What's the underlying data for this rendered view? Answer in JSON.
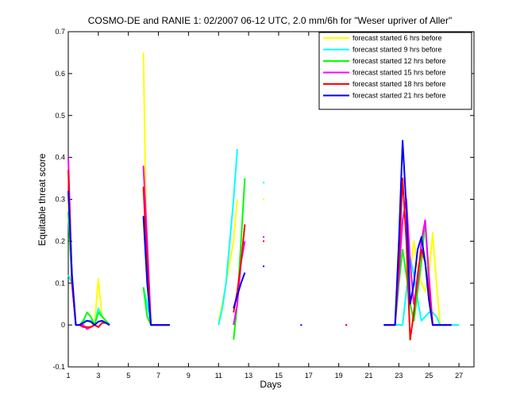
{
  "chart_data": {
    "type": "line",
    "title": "COSMO-DE and RANIE 1: 02/2007 06-12 UTC, 2.0 mm/6h for \"Weser upriver of Aller\"",
    "xlabel": "Days",
    "ylabel": "Equitable threat score",
    "xlim": [
      1,
      28
    ],
    "ylim": [
      -0.1,
      0.7
    ],
    "x_ticks": [
      1,
      3,
      5,
      7,
      9,
      11,
      13,
      15,
      17,
      19,
      21,
      23,
      25,
      27
    ],
    "x_tick_labels": [
      "1",
      "3",
      "5",
      "7",
      "9",
      "11",
      "13",
      "15",
      "17",
      "19",
      "21",
      "23",
      "25",
      "27"
    ],
    "y_ticks": [
      -0.1,
      0,
      0.1,
      0.2,
      0.3,
      0.4,
      0.5,
      0.6,
      0.7
    ],
    "y_tick_labels": [
      "-0.1",
      "0",
      "0.1",
      "0.2",
      "0.3",
      "0.4",
      "0.5",
      "0.6",
      "0.7"
    ],
    "x_step": 0.25,
    "grid": false,
    "legend_position": "top-right",
    "series": [
      {
        "name": "forecast started 6 hrs before",
        "color": "#ffff00",
        "values": [
          0.3,
          0.1,
          0,
          0,
          0.01,
          0.01,
          0.005,
          0,
          0.11,
          0.02,
          0.01,
          0,
          null,
          null,
          null,
          null,
          null,
          null,
          null,
          null,
          0.65,
          0.1,
          0,
          0,
          0,
          0,
          0,
          0,
          null,
          null,
          null,
          null,
          null,
          null,
          null,
          null,
          null,
          null,
          null,
          null,
          0.01,
          0.05,
          0.1,
          0.15,
          0.2,
          0.3,
          null,
          null,
          null,
          null,
          null,
          null,
          0.3,
          null,
          null,
          null,
          null,
          null,
          null,
          null,
          null,
          null,
          null,
          null,
          null,
          null,
          null,
          null,
          null,
          null,
          null,
          null,
          null,
          null,
          null,
          null,
          null,
          null,
          null,
          null,
          null,
          null,
          null,
          null,
          null,
          null,
          0,
          0,
          0,
          0,
          0.08,
          0.12,
          0.2,
          0.14,
          0.1,
          0.08,
          0.12,
          0.22,
          0.1,
          0,
          0,
          0,
          0,
          0,
          0
        ]
      },
      {
        "name": "forecast started 9 hrs before",
        "color": "#00ffff",
        "values": [
          0.12,
          0.1,
          0,
          0,
          0.01,
          0.01,
          0.01,
          0,
          0.04,
          0.02,
          0.01,
          0,
          null,
          null,
          null,
          null,
          null,
          null,
          null,
          null,
          0.09,
          0.05,
          0,
          0,
          0,
          0,
          0,
          0,
          null,
          null,
          null,
          null,
          null,
          null,
          null,
          null,
          null,
          null,
          null,
          null,
          0,
          0.04,
          0.1,
          0.2,
          0.3,
          0.42,
          null,
          null,
          null,
          null,
          null,
          null,
          0.34,
          null,
          null,
          null,
          null,
          null,
          null,
          null,
          null,
          null,
          null,
          null,
          null,
          null,
          null,
          null,
          null,
          null,
          null,
          null,
          null,
          null,
          null,
          null,
          null,
          null,
          null,
          null,
          null,
          null,
          null,
          null,
          null,
          null,
          0,
          0,
          0,
          0,
          0.08,
          0.16,
          0.12,
          0.06,
          0.01,
          0.02,
          0.03,
          0.03,
          0.02,
          0,
          0,
          0,
          0,
          0,
          0
        ]
      },
      {
        "name": "forecast started 12 hrs before",
        "color": "#00ff00",
        "values": [
          0.27,
          0.1,
          0,
          0,
          0.01,
          0.03,
          0.02,
          0,
          0.03,
          0.02,
          0.01,
          0,
          null,
          null,
          null,
          null,
          null,
          null,
          null,
          null,
          0.09,
          0.02,
          0,
          0,
          0,
          0,
          0,
          0,
          null,
          null,
          null,
          null,
          null,
          null,
          null,
          null,
          null,
          null,
          null,
          null,
          null,
          null,
          null,
          null,
          -0.035,
          0.05,
          0.2,
          0.35,
          null,
          null,
          null,
          null,
          null,
          null,
          null,
          null,
          null,
          null,
          null,
          null,
          null,
          null,
          null,
          null,
          null,
          null,
          null,
          null,
          null,
          null,
          null,
          null,
          null,
          null,
          null,
          null,
          null,
          null,
          null,
          null,
          null,
          null,
          null,
          null,
          0,
          0,
          0,
          0,
          0.1,
          0.18,
          0.12,
          0.05,
          0.01,
          0.08,
          0.15,
          0.25,
          0.1,
          0,
          0,
          0,
          0,
          0,
          0
        ]
      },
      {
        "name": "forecast started 15 hrs before",
        "color": "#ff00ff",
        "values": [
          0.4,
          0.1,
          0,
          0,
          0,
          -0.01,
          -0.005,
          0,
          -0.005,
          0.005,
          0.005,
          0,
          null,
          null,
          null,
          null,
          null,
          null,
          null,
          null,
          0.38,
          0.2,
          0,
          0,
          0,
          0,
          0,
          0,
          null,
          null,
          null,
          null,
          null,
          null,
          null,
          null,
          null,
          null,
          null,
          null,
          null,
          null,
          null,
          null,
          0.0,
          0.05,
          0.15,
          0.2,
          null,
          null,
          null,
          null,
          0.21,
          null,
          null,
          null,
          null,
          null,
          null,
          null,
          null,
          null,
          null,
          null,
          null,
          null,
          null,
          null,
          null,
          null,
          null,
          null,
          null,
          null,
          0,
          null,
          null,
          null,
          null,
          null,
          null,
          null,
          null,
          null,
          0,
          0,
          0,
          0,
          0.12,
          0.25,
          0.3,
          0.15,
          0.05,
          0.1,
          0.2,
          0.25,
          0.12,
          0,
          0,
          0,
          0,
          0,
          0
        ]
      },
      {
        "name": "forecast started 18 hrs before",
        "color": "#ff0000",
        "values": [
          0.37,
          0.1,
          0,
          0,
          -0.005,
          -0.005,
          -0.005,
          0,
          -0.005,
          0.005,
          0.005,
          0,
          null,
          null,
          null,
          null,
          null,
          null,
          null,
          null,
          0.33,
          0.15,
          0,
          0,
          0,
          0,
          0,
          0,
          null,
          null,
          null,
          null,
          null,
          null,
          null,
          null,
          null,
          null,
          null,
          null,
          null,
          null,
          null,
          null,
          0.03,
          0.08,
          0.15,
          0.24,
          null,
          null,
          null,
          null,
          0.2,
          null,
          null,
          null,
          null,
          null,
          null,
          null,
          null,
          null,
          null,
          null,
          null,
          null,
          null,
          null,
          null,
          null,
          null,
          null,
          null,
          null,
          0,
          null,
          null,
          null,
          null,
          null,
          null,
          null,
          null,
          null,
          0,
          0,
          0,
          0,
          0.15,
          0.35,
          0.2,
          -0.035,
          0.03,
          0.12,
          0.18,
          0.15,
          0.08,
          0,
          0,
          0,
          0,
          0,
          0
        ]
      },
      {
        "name": "forecast started 21 hrs before",
        "color": "#0000ff",
        "values": [
          0.32,
          0.12,
          0,
          0,
          0.005,
          0.01,
          0.008,
          0,
          0.008,
          0.01,
          0.005,
          0,
          null,
          null,
          null,
          null,
          null,
          null,
          null,
          null,
          0.26,
          0.1,
          0,
          0,
          0,
          0,
          0,
          0,
          null,
          null,
          null,
          null,
          null,
          null,
          null,
          null,
          null,
          null,
          null,
          null,
          null,
          null,
          null,
          null,
          0.04,
          0.07,
          0.1,
          0.125,
          null,
          null,
          null,
          null,
          0.14,
          null,
          null,
          null,
          null,
          null,
          null,
          null,
          null,
          null,
          0,
          null,
          null,
          null,
          null,
          null,
          null,
          null,
          null,
          null,
          null,
          null,
          null,
          null,
          null,
          null,
          null,
          null,
          null,
          null,
          null,
          null,
          0,
          0,
          0,
          0,
          0.2,
          0.44,
          0.28,
          0.05,
          0.1,
          0.18,
          0.21,
          0.15,
          0.06,
          0,
          0,
          0,
          0,
          0,
          0
        ]
      }
    ]
  }
}
